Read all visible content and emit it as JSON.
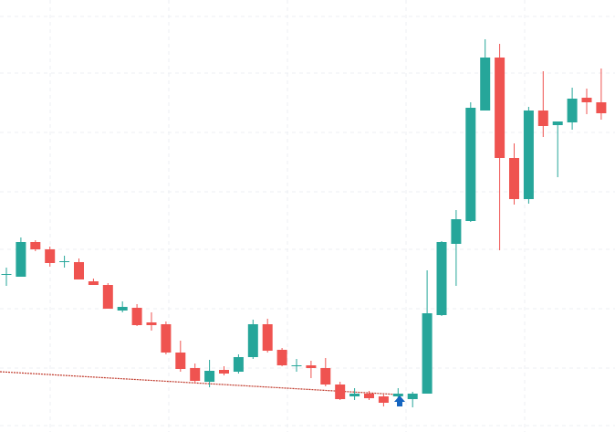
{
  "chart_data": {
    "type": "candlestick",
    "up_color": "#26a69a",
    "down_color": "#ef5350",
    "ylim": [
      0,
      473
    ],
    "open": [
      173,
      170,
      208,
      200,
      187,
      186,
      165,
      161,
      133,
      136,
      120,
      118,
      87,
      70,
      55,
      68,
      66,
      82,
      118,
      90,
      73,
      73,
      70,
      52,
      39,
      42,
      39,
      39,
      36,
      42,
      128,
      206,
      231,
      352,
      410,
      300,
      255,
      352,
      336,
      339,
      366,
      361
    ],
    "high": [
      180,
      213,
      210,
      203,
      193,
      190,
      168,
      163,
      143,
      140,
      131,
      121,
      100,
      75,
      79,
      72,
      85,
      123,
      124,
      92,
      80,
      78,
      81,
      55,
      48,
      45,
      41,
      48,
      44,
      177,
      209,
      243,
      361,
      430,
      425,
      316,
      356,
      395,
      340,
      377,
      376,
      398
    ],
    "low": [
      160,
      170,
      198,
      181,
      180,
      167,
      161,
      135,
      131,
      116,
      111,
      85,
      66,
      53,
      49,
      62,
      64,
      80,
      87,
      72,
      66,
      59,
      50,
      35,
      35,
      35,
      28,
      30,
      27,
      42,
      127,
      160,
      230,
      352,
      199,
      249,
      250,
      323,
      279,
      331,
      348,
      342
    ],
    "close": [
      173,
      208,
      200,
      185,
      187,
      167,
      161,
      135,
      137,
      117,
      117,
      87,
      69,
      56,
      67,
      64,
      82,
      118,
      89,
      73,
      73,
      70,
      52,
      36,
      42,
      37,
      32,
      42,
      42,
      130,
      208,
      233,
      355,
      410,
      300,
      255,
      352,
      335,
      340,
      365,
      361,
      349
    ]
  }
}
